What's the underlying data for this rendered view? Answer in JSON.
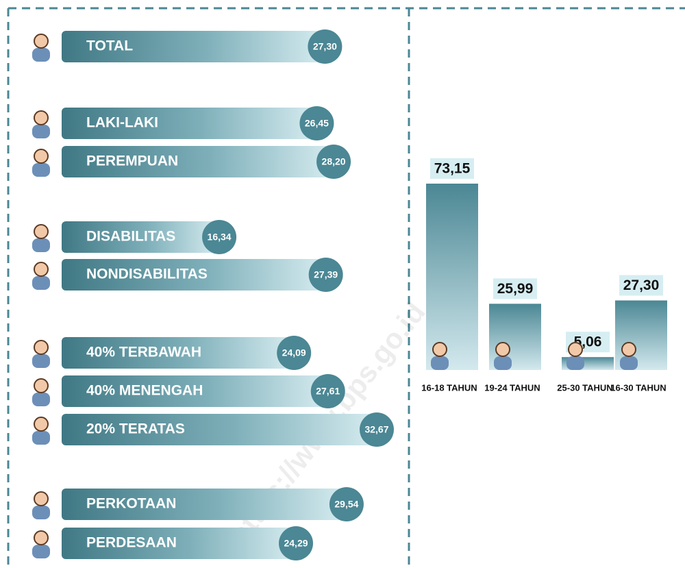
{
  "chart_data": [
    {
      "type": "hbar",
      "categories": [
        "TOTAL",
        "LAKI-LAKI",
        "PEREMPUAN",
        "DISABILITAS",
        "NONDISABILITAS",
        "40% TERBAWAH",
        "40% MENENGAH",
        "20% TERATAS",
        "PERKOTAAN",
        "PERDESAAN"
      ],
      "values": [
        27.3,
        26.45,
        28.2,
        16.34,
        27.39,
        24.09,
        27.61,
        32.67,
        29.54,
        24.29
      ],
      "value_labels": [
        "27,30",
        "26,45",
        "28,20",
        "16,34",
        "27,39",
        "24,09",
        "27,61",
        "32,67",
        "29,54",
        "24,29"
      ],
      "color": "#4b8794"
    },
    {
      "type": "bar",
      "categories": [
        "16-18 TAHUN",
        "19-24 TAHUN",
        "25-30 TAHUN",
        "16-30 TAHUN"
      ],
      "values": [
        73.15,
        25.99,
        5.06,
        27.3
      ],
      "value_labels": [
        "73,15",
        "25,99",
        "5,06",
        "27,30"
      ],
      "color": "#4b8794"
    }
  ],
  "watermark": "https://www.bps.go.id"
}
